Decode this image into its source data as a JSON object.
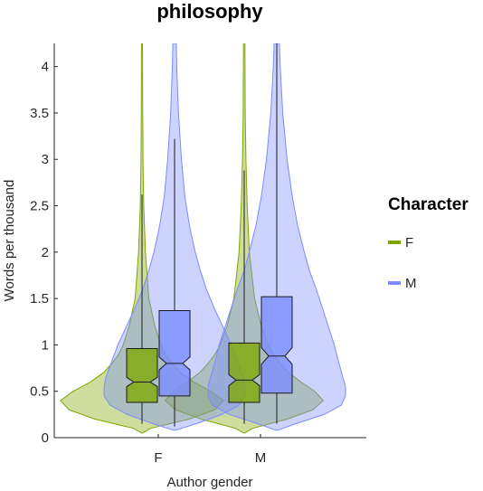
{
  "chart_data": {
    "type": "violin",
    "title": "philosophy",
    "xlabel": "Author gender",
    "ylabel": "Words per thousand",
    "categories": [
      "F",
      "M"
    ],
    "ylim": [
      0,
      4.25
    ],
    "yticks": [
      0,
      0.5,
      1,
      1.5,
      2,
      2.5,
      3,
      3.5,
      4
    ],
    "ytick_labels": [
      "0",
      "0.5",
      "1",
      "1.5",
      "2",
      "2.5",
      "3",
      "3.5",
      "4"
    ],
    "grid": false,
    "legend": {
      "title": "Character",
      "position": "right",
      "entries": [
        "F",
        "M"
      ]
    },
    "series": [
      {
        "name": "F",
        "color": "#7fa600",
        "boxes": [
          {
            "category": "F",
            "q1": 0.38,
            "median": 0.6,
            "q3": 0.96,
            "notch_low": 0.55,
            "notch_high": 0.65,
            "whisker_low": 0.15,
            "whisker_high": 2.62,
            "density": [
              [
                0.05,
                0.005
              ],
              [
                0.1,
                0.1
              ],
              [
                0.2,
                0.55
              ],
              [
                0.3,
                0.85
              ],
              [
                0.4,
                0.95
              ],
              [
                0.5,
                0.8
              ],
              [
                0.6,
                0.6
              ],
              [
                0.7,
                0.45
              ],
              [
                0.8,
                0.35
              ],
              [
                0.9,
                0.27
              ],
              [
                1.0,
                0.22
              ],
              [
                1.2,
                0.15
              ],
              [
                1.5,
                0.08
              ],
              [
                2.0,
                0.04
              ],
              [
                2.5,
                0.02
              ],
              [
                3.0,
                0.012
              ],
              [
                3.5,
                0.008
              ],
              [
                4.25,
                0.006
              ]
            ]
          },
          {
            "category": "M",
            "q1": 0.38,
            "median": 0.62,
            "q3": 1.02,
            "notch_low": 0.56,
            "notch_high": 0.68,
            "whisker_low": 0.15,
            "whisker_high": 2.88,
            "density": [
              [
                0.05,
                0.005
              ],
              [
                0.1,
                0.1
              ],
              [
                0.2,
                0.5
              ],
              [
                0.3,
                0.8
              ],
              [
                0.4,
                0.92
              ],
              [
                0.5,
                0.82
              ],
              [
                0.6,
                0.66
              ],
              [
                0.7,
                0.52
              ],
              [
                0.8,
                0.42
              ],
              [
                0.9,
                0.34
              ],
              [
                1.0,
                0.28
              ],
              [
                1.2,
                0.2
              ],
              [
                1.5,
                0.12
              ],
              [
                2.0,
                0.06
              ],
              [
                2.5,
                0.035
              ],
              [
                3.0,
                0.02
              ],
              [
                3.5,
                0.012
              ],
              [
                4.25,
                0.008
              ]
            ]
          }
        ]
      },
      {
        "name": "M",
        "color": "#7a8cff",
        "boxes": [
          {
            "category": "F",
            "q1": 0.45,
            "median": 0.8,
            "q3": 1.37,
            "notch_low": 0.73,
            "notch_high": 0.87,
            "whisker_low": 0.12,
            "whisker_high": 3.22,
            "density": [
              [
                0.08,
                0.01
              ],
              [
                0.15,
                0.25
              ],
              [
                0.25,
                0.55
              ],
              [
                0.35,
                0.75
              ],
              [
                0.45,
                0.82
              ],
              [
                0.55,
                0.82
              ],
              [
                0.65,
                0.8
              ],
              [
                0.75,
                0.76
              ],
              [
                0.85,
                0.72
              ],
              [
                1.0,
                0.66
              ],
              [
                1.2,
                0.56
              ],
              [
                1.4,
                0.46
              ],
              [
                1.6,
                0.37
              ],
              [
                1.8,
                0.3
              ],
              [
                2.0,
                0.24
              ],
              [
                2.3,
                0.17
              ],
              [
                2.6,
                0.12
              ],
              [
                3.0,
                0.08
              ],
              [
                3.5,
                0.045
              ],
              [
                4.0,
                0.025
              ],
              [
                4.25,
                0.02
              ]
            ]
          },
          {
            "category": "M",
            "q1": 0.48,
            "median": 0.88,
            "q3": 1.52,
            "notch_low": 0.79,
            "notch_high": 0.97,
            "whisker_low": 0.15,
            "whisker_high": 4.25,
            "density": [
              [
                0.08,
                0.01
              ],
              [
                0.15,
                0.22
              ],
              [
                0.25,
                0.55
              ],
              [
                0.35,
                0.75
              ],
              [
                0.45,
                0.8
              ],
              [
                0.55,
                0.8
              ],
              [
                0.65,
                0.77
              ],
              [
                0.75,
                0.74
              ],
              [
                0.85,
                0.71
              ],
              [
                1.0,
                0.67
              ],
              [
                1.2,
                0.6
              ],
              [
                1.4,
                0.53
              ],
              [
                1.6,
                0.46
              ],
              [
                1.8,
                0.38
              ],
              [
                2.0,
                0.32
              ],
              [
                2.3,
                0.24
              ],
              [
                2.6,
                0.18
              ],
              [
                3.0,
                0.12
              ],
              [
                3.5,
                0.07
              ],
              [
                4.0,
                0.04
              ],
              [
                4.25,
                0.03
              ]
            ]
          }
        ]
      }
    ]
  }
}
